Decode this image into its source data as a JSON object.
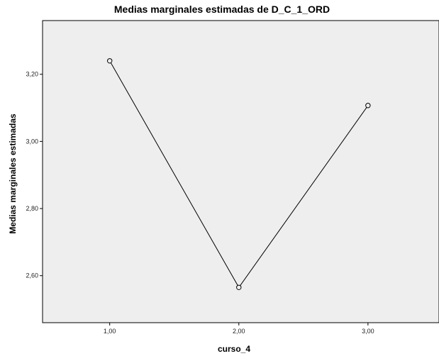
{
  "chart_data": {
    "type": "line",
    "title": "Medias marginales estimadas de D_C_1_ORD",
    "xlabel": "curso_4",
    "ylabel": "Medias marginales estimadas",
    "x": [
      1.0,
      2.0,
      3.0
    ],
    "x_tick_labels": [
      "1,00",
      "2,00",
      "3,00"
    ],
    "series": [
      {
        "values": [
          3.24,
          2.565,
          3.107
        ]
      }
    ],
    "y_ticks": [
      2.6,
      2.8,
      3.0,
      3.2
    ],
    "y_tick_labels": [
      "2,60",
      "2,80",
      "3,00",
      "3,20"
    ],
    "xlim": [
      0.48,
      3.55
    ],
    "ylim": [
      2.46,
      3.36
    ],
    "grid": false,
    "legend": "none",
    "colors": {
      "plot_background": "#eeeeee",
      "line": "#000000",
      "marker_fill": "#eeeeee"
    }
  }
}
